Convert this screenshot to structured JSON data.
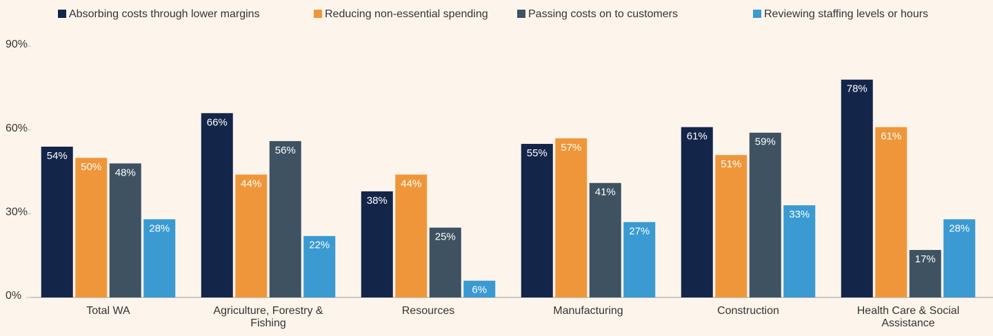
{
  "chart_data": {
    "type": "bar",
    "categories": [
      "Total WA",
      "Agriculture, Forestry & Fishing",
      "Resources",
      "Manufacturing",
      "Construction",
      "Health Care & Social Assistance"
    ],
    "series": [
      {
        "name": "Absorbing costs through lower margins",
        "color": "#14254a",
        "values": [
          54,
          66,
          38,
          55,
          61,
          78
        ],
        "value_labels": [
          "54%",
          "66%",
          "38%",
          "55%",
          "61%",
          "78%"
        ]
      },
      {
        "name": "Reducing non-essential spending",
        "color": "#f0963a",
        "values": [
          50,
          44,
          44,
          57,
          51,
          61
        ],
        "value_labels": [
          "50%",
          "44%",
          "44%",
          "57%",
          "51%",
          "61%"
        ]
      },
      {
        "name": "Passing costs on to customers",
        "color": "#3e5262",
        "values": [
          48,
          56,
          25,
          41,
          59,
          17
        ],
        "value_labels": [
          "48%",
          "56%",
          "25%",
          "41%",
          "59%",
          "17%"
        ]
      },
      {
        "name": "Reviewing staffing levels or hours",
        "color": "#3a9ad1",
        "values": [
          28,
          22,
          6,
          27,
          33,
          28
        ],
        "value_labels": [
          "28%",
          "22%",
          "6%",
          "27%",
          "33%",
          "28%"
        ]
      }
    ],
    "ylim": [
      0,
      90
    ],
    "yticks": [
      {
        "value": 0,
        "label": "0%"
      },
      {
        "value": 30,
        "label": "30%"
      },
      {
        "value": 60,
        "label": "60%"
      },
      {
        "value": 90,
        "label": "90%"
      }
    ],
    "legend": "top"
  }
}
